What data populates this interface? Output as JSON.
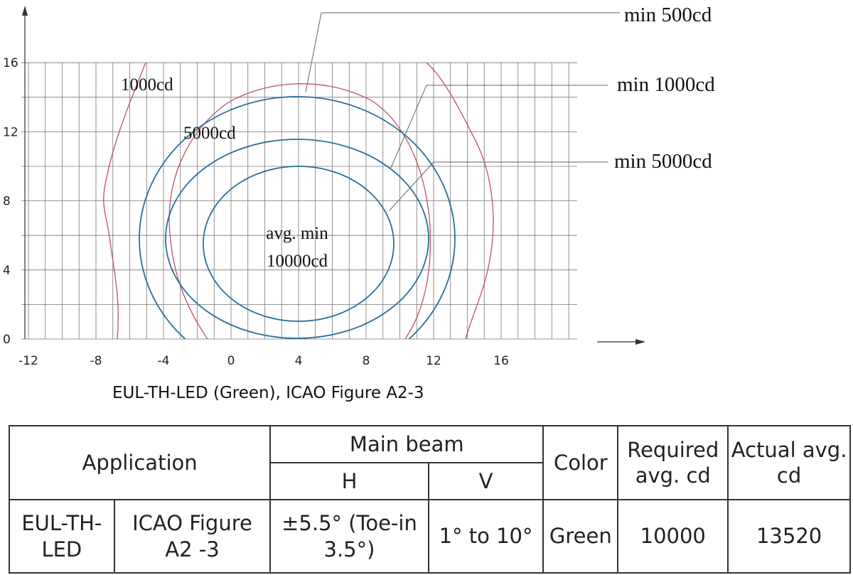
{
  "diagram": {
    "labels": {
      "min_500": "min 500cd",
      "min_1000": "min 1000cd",
      "min_5000": "min 5000cd",
      "curve_1000": "1000cd",
      "curve_5000": "5000cd",
      "center": [
        "avg. min",
        "10000cd"
      ]
    },
    "x_ticks": [
      -12,
      -8,
      -4,
      0,
      4,
      8,
      12,
      16
    ],
    "y_ticks": [
      0,
      4,
      8,
      12,
      16
    ],
    "caption": "EUL-TH-LED (Green), ICAO Figure A2-3"
  },
  "table": {
    "header": {
      "application": "Application",
      "main_beam": "Main beam",
      "h": "H",
      "v": "V",
      "color": "Color",
      "required": "Required avg. cd",
      "actual": "Actual avg. cd"
    },
    "row": {
      "application_1": "EUL-TH-LED",
      "application_2": "ICAO Figure A2 -3",
      "h": "±5.5° (Toe-in 3.5°)",
      "v": "1° to 10°",
      "color": "Green",
      "required": 10000,
      "actual": 13520
    }
  }
}
